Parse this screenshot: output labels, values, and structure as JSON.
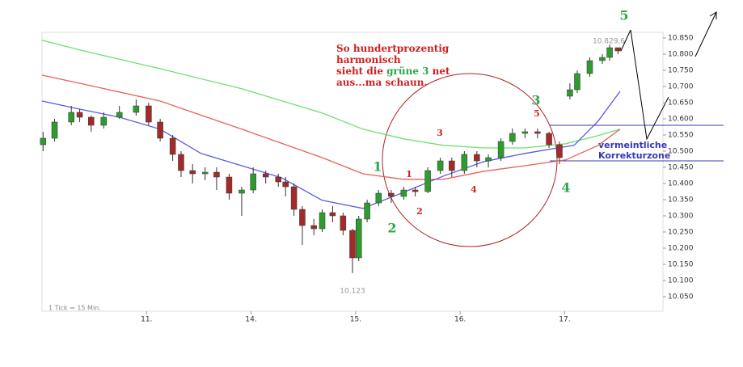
{
  "chart_data": {
    "type": "candlestick",
    "x": [
      0.01,
      0.12,
      0.28,
      0.36,
      0.47,
      0.59,
      0.74,
      0.9,
      1.02,
      1.13,
      1.25,
      1.33,
      1.44,
      1.56,
      1.67,
      1.79,
      1.91,
      2.02,
      2.14,
      2.26,
      2.33,
      2.41,
      2.49,
      2.6,
      2.68,
      2.78,
      2.88,
      2.97,
      3.03,
      3.11,
      3.22,
      3.34,
      3.46,
      3.57,
      3.69,
      3.81,
      3.92,
      4.04,
      4.16,
      4.27,
      4.39,
      4.5,
      4.62,
      4.74,
      4.85,
      4.95,
      5.05,
      5.12,
      5.24,
      5.36,
      5.43,
      5.51
    ],
    "open": [
      10.52,
      10.54,
      10.59,
      10.62,
      10.605,
      10.58,
      10.605,
      10.62,
      10.64,
      10.59,
      10.54,
      10.49,
      10.44,
      10.43,
      10.435,
      10.42,
      10.37,
      10.38,
      10.43,
      10.42,
      10.405,
      10.39,
      10.32,
      10.27,
      10.26,
      10.31,
      10.3,
      10.255,
      10.17,
      10.29,
      10.34,
      10.37,
      10.36,
      10.38,
      10.375,
      10.44,
      10.47,
      10.44,
      10.49,
      10.47,
      10.48,
      10.53,
      10.555,
      10.56,
      10.555,
      10.52,
      10.67,
      10.69,
      10.74,
      10.78,
      10.79,
      10.82
    ],
    "high": [
      10.56,
      10.6,
      10.64,
      10.63,
      10.61,
      10.62,
      10.64,
      10.66,
      10.65,
      10.6,
      10.55,
      10.5,
      10.46,
      10.45,
      10.45,
      10.43,
      10.39,
      10.45,
      10.44,
      10.43,
      10.42,
      10.4,
      10.33,
      10.29,
      10.32,
      10.33,
      10.31,
      10.26,
      10.3,
      10.35,
      10.38,
      10.38,
      10.39,
      10.39,
      10.45,
      10.48,
      10.48,
      10.5,
      10.5,
      10.49,
      10.54,
      10.57,
      10.57,
      10.57,
      10.56,
      10.53,
      10.71,
      10.75,
      10.79,
      10.8,
      10.8296,
      10.82
    ],
    "low": [
      10.5,
      10.53,
      10.58,
      10.59,
      10.56,
      10.57,
      10.6,
      10.61,
      10.58,
      10.53,
      10.47,
      10.42,
      10.4,
      10.41,
      10.38,
      10.35,
      10.3,
      10.37,
      10.4,
      10.39,
      10.36,
      10.3,
      10.21,
      10.24,
      10.25,
      10.28,
      10.24,
      10.123,
      10.16,
      10.28,
      10.33,
      10.34,
      10.35,
      10.36,
      10.37,
      10.43,
      10.42,
      10.43,
      10.45,
      10.45,
      10.47,
      10.52,
      10.54,
      10.54,
      10.51,
      10.46,
      10.66,
      10.68,
      10.73,
      10.77,
      10.78,
      10.8
    ],
    "close": [
      10.54,
      10.59,
      10.62,
      10.605,
      10.58,
      10.605,
      10.62,
      10.64,
      10.59,
      10.54,
      10.49,
      10.44,
      10.43,
      10.435,
      10.42,
      10.37,
      10.38,
      10.43,
      10.42,
      10.405,
      10.39,
      10.32,
      10.27,
      10.26,
      10.31,
      10.3,
      10.255,
      10.17,
      10.29,
      10.34,
      10.37,
      10.36,
      10.38,
      10.375,
      10.44,
      10.47,
      10.44,
      10.49,
      10.47,
      10.48,
      10.53,
      10.555,
      10.56,
      10.555,
      10.52,
      10.48,
      10.69,
      10.74,
      10.78,
      10.79,
      10.82,
      10.81
    ],
    "up_color": "#2e9b2e",
    "down_color": "#a32a2a",
    "lines": [
      {
        "color": "#6fe06f",
        "x": [
          0,
          0.36,
          1.13,
          1.91,
          2.68,
          3.07,
          3.46,
          3.84,
          4.23,
          4.62,
          5.01,
          5.32,
          5.53
        ],
        "values": [
          10.843,
          10.813,
          10.755,
          10.693,
          10.618,
          10.568,
          10.538,
          10.518,
          10.51,
          10.51,
          10.523,
          10.548,
          10.568
        ]
      },
      {
        "color": "#e8605a",
        "x": [
          0,
          0.36,
          1.13,
          1.91,
          2.68,
          3.07,
          3.46,
          3.84,
          4.23,
          4.62,
          5.01,
          5.32,
          5.53
        ],
        "values": [
          10.735,
          10.71,
          10.655,
          10.568,
          10.48,
          10.43,
          10.413,
          10.413,
          10.438,
          10.455,
          10.473,
          10.518,
          10.568
        ]
      },
      {
        "color": "#5a5ae0",
        "x": [
          0,
          0.36,
          0.74,
          1.13,
          1.52,
          1.91,
          2.29,
          2.68,
          3.07,
          3.46,
          3.84,
          4.23,
          4.62,
          4.93,
          5.09,
          5.32,
          5.53
        ],
        "values": [
          10.655,
          10.63,
          10.605,
          10.568,
          10.493,
          10.455,
          10.418,
          10.348,
          10.323,
          10.373,
          10.423,
          10.468,
          10.493,
          10.51,
          10.518,
          10.593,
          10.685
        ]
      }
    ],
    "xlim": [
      0,
      5.94
    ],
    "ylim": [
      10.005,
      10.8675
    ],
    "xticks": [
      {
        "value": 1,
        "label": "11."
      },
      {
        "value": 2,
        "label": "14."
      },
      {
        "value": 3,
        "label": "15."
      },
      {
        "value": 4,
        "label": "16."
      },
      {
        "value": 5,
        "label": "17."
      }
    ],
    "yticks": [
      {
        "value": 10.05,
        "label": "10.050"
      },
      {
        "value": 10.1,
        "label": "10.100"
      },
      {
        "value": 10.15,
        "label": "10.150"
      },
      {
        "value": 10.2,
        "label": "10.200"
      },
      {
        "value": 10.25,
        "label": "10.250"
      },
      {
        "value": 10.3,
        "label": "10.300"
      },
      {
        "value": 10.35,
        "label": "10.350"
      },
      {
        "value": 10.4,
        "label": "10.400"
      },
      {
        "value": 10.45,
        "label": "10.450"
      },
      {
        "value": 10.5,
        "label": "10.500"
      },
      {
        "value": 10.55,
        "label": "10.550"
      },
      {
        "value": 10.6,
        "label": "10.600"
      },
      {
        "value": 10.65,
        "label": "10.650"
      },
      {
        "value": 10.7,
        "label": "10.700"
      },
      {
        "value": 10.75,
        "label": "10.750"
      },
      {
        "value": 10.8,
        "label": "10.800"
      },
      {
        "value": 10.85,
        "label": "10.850"
      }
    ],
    "max_label": {
      "value": 10.8296,
      "label": "10.829,6"
    },
    "min_label": {
      "value": 10.123,
      "label": "10.123"
    },
    "footnote": "1 Tick = 15 Min.",
    "zone": [
      10.58,
      10.47
    ],
    "zone_label": [
      "vermeintliche",
      "Korrekturzone"
    ],
    "comment": [
      "So hundertprozentig",
      "harmonisch",
      "sieht die ",
      "grüne 3",
      " net",
      "aus...ma schaun."
    ],
    "green_waves": [
      "1",
      "2",
      "3",
      "4",
      "5"
    ],
    "red_waves": [
      "1",
      "2",
      "3",
      "4",
      "5"
    ]
  }
}
